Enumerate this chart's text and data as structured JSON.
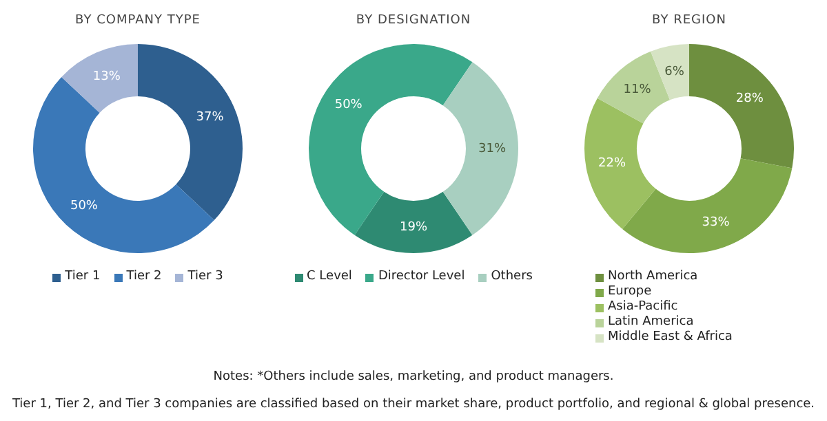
{
  "chart_data": [
    {
      "type": "donut",
      "title": "BY COMPANY TYPE",
      "categories": [
        "Tier 1",
        "Tier 2",
        "Tier 3"
      ],
      "values": [
        37,
        50,
        13
      ],
      "value_labels": [
        "37%",
        "50%",
        "13%"
      ],
      "colors": [
        "#2e5f8f",
        "#3a78b8",
        "#a5b5d6"
      ],
      "legend": "bottom"
    },
    {
      "type": "donut",
      "title": "BY DESIGNATION",
      "categories": [
        "C Level",
        "Director Level",
        "Others"
      ],
      "values": [
        19,
        50,
        31
      ],
      "value_labels": [
        "19%",
        "50%",
        "31%"
      ],
      "colors": [
        "#2e8a72",
        "#3aa88a",
        "#a8cfc0"
      ],
      "legend": "bottom"
    },
    {
      "type": "donut",
      "title": "BY REGION",
      "categories": [
        "North America",
        "Europe",
        "Asia-Pacific",
        "Latin America",
        "Middle East & Africa"
      ],
      "values": [
        28,
        33,
        22,
        11,
        6
      ],
      "value_labels": [
        "28%",
        "33%",
        "22%",
        "11%",
        "6%"
      ],
      "colors": [
        "#6e8f3f",
        "#80a94a",
        "#9cc061",
        "#b9d39a",
        "#d6e3c4"
      ],
      "legend": "bottom",
      "annotations": [
        "Notes: *Others include sales, marketing, and product managers.",
        "Tier 1, Tier 2, and Tier 3 companies are classified based on their market share, product portfolio, and regional & global presence."
      ]
    }
  ]
}
